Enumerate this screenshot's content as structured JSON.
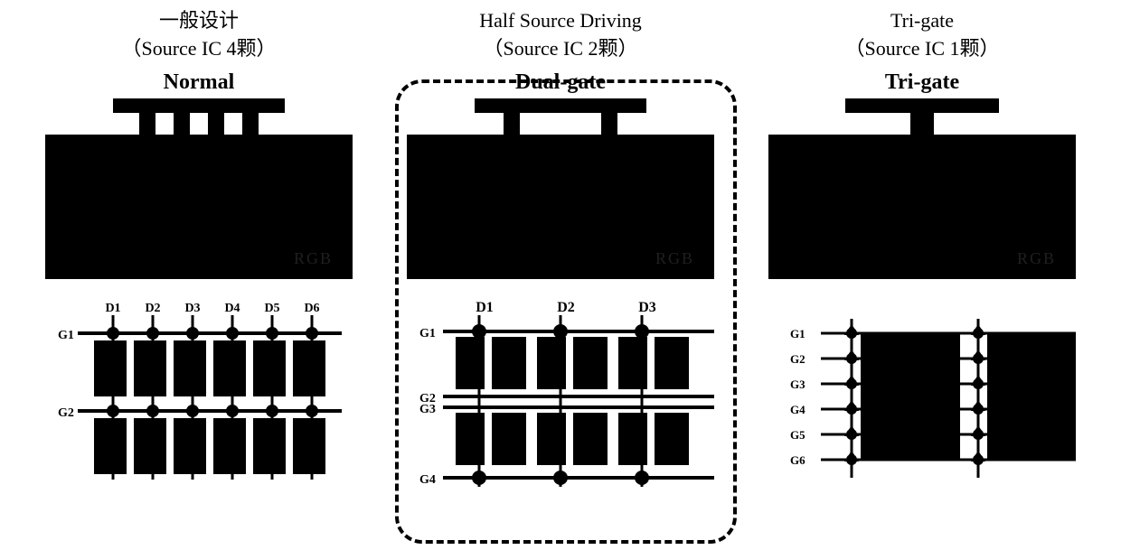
{
  "columns": [
    {
      "id": "normal",
      "header_line1": "一般设计",
      "header_line2": "（Source IC 4颗）",
      "subtitle": "Normal",
      "chip": {
        "top_bar_width": 190,
        "connectors": 4,
        "body_faint_text": "RGB"
      },
      "grid": {
        "type": "normal",
        "data_lines": [
          "D1",
          "D2",
          "D3",
          "D4",
          "D5",
          "D6"
        ],
        "gate_lines": [
          "G1",
          "G2"
        ],
        "colors": {
          "line": "#000000",
          "block": "#000000",
          "bg": "#ffffff"
        }
      }
    },
    {
      "id": "dualgate",
      "header_line1": "Half Source Driving",
      "header_line2": "（Source IC 2颗）",
      "subtitle": "Dual-gate",
      "chip": {
        "top_bar_width": 190,
        "connectors": 2,
        "body_faint_text": "RGB"
      },
      "grid": {
        "type": "dualgate",
        "data_lines": [
          "D1",
          "D2",
          "D3"
        ],
        "gate_lines": [
          "G1",
          "G2",
          "G3",
          "G4"
        ],
        "colors": {
          "line": "#000000",
          "block": "#000000",
          "bg": "#ffffff"
        }
      }
    },
    {
      "id": "trigate",
      "header_line1": "Tri-gate",
      "header_line2": "（Source IC 1颗）",
      "subtitle": "Tri-gate",
      "chip": {
        "top_bar_width": 170,
        "connectors": 1,
        "body_faint_text": "RGB"
      },
      "grid": {
        "type": "trigate",
        "data_lines": [
          "",
          ""
        ],
        "gate_lines": [
          "G1",
          "G2",
          "G3",
          "G4",
          "G5",
          "G6"
        ],
        "colors": {
          "line": "#000000",
          "block": "#000000",
          "bg": "#ffffff"
        }
      }
    }
  ],
  "style": {
    "page_bg": "#ffffff",
    "text_color": "#000000",
    "header_fontsize": 22,
    "subtitle_fontsize": 24
  }
}
